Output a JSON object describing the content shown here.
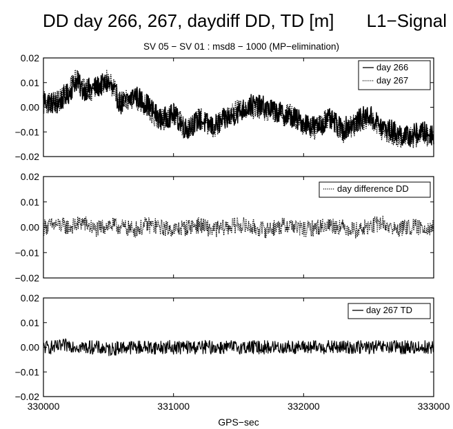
{
  "title_left": "DD day 266, 267, daydiff DD, TD [m]",
  "title_right": "L1−Signal",
  "subtitle": "SV 05 − SV 01 : msd8 − 1000   (MP−elimination)",
  "xlabel": "GPS−sec",
  "x_tick_labels": [
    "330000",
    "331000",
    "332000",
    "333000"
  ],
  "y_tick_labels": [
    "0.02",
    "0.01",
    "0.00",
    "−0.01",
    "−0.02"
  ],
  "colors": {
    "series": "#000000",
    "background": "#ffffff",
    "frame": "#000000"
  },
  "chart_data": [
    {
      "type": "line",
      "title": "",
      "xlabel": "",
      "ylabel": "",
      "xlim": [
        330000,
        333000
      ],
      "ylim": [
        -0.02,
        0.02
      ],
      "legend_position": "top-right",
      "series": [
        {
          "name": "day 266",
          "style": "solid",
          "x": [
            330000,
            330100,
            330200,
            330250,
            330300,
            330400,
            330500,
            330600,
            330700,
            330800,
            330900,
            331000,
            331100,
            331200,
            331300,
            331400,
            331500,
            331600,
            331700,
            331800,
            331900,
            332000,
            332100,
            332200,
            332300,
            332400,
            332500,
            332600,
            332700,
            332800,
            332900,
            333000
          ],
          "values": [
            0.003,
            0.001,
            0.006,
            0.011,
            0.007,
            0.008,
            0.01,
            0.001,
            0.005,
            0.001,
            -0.005,
            -0.003,
            -0.009,
            -0.005,
            -0.008,
            -0.005,
            -0.002,
            0.001,
            0.0,
            -0.002,
            -0.004,
            -0.006,
            -0.008,
            -0.005,
            -0.009,
            -0.006,
            -0.003,
            -0.008,
            -0.01,
            -0.012,
            -0.01,
            -0.011
          ]
        },
        {
          "name": "day 267",
          "style": "dotted",
          "x": [
            330000,
            330100,
            330200,
            330250,
            330300,
            330400,
            330500,
            330600,
            330700,
            330800,
            330900,
            331000,
            331100,
            331200,
            331300,
            331400,
            331500,
            331600,
            331700,
            331800,
            331900,
            332000,
            332100,
            332200,
            332300,
            332400,
            332500,
            332600,
            332700,
            332800,
            332900,
            333000
          ],
          "values": [
            0.002,
            0.002,
            0.007,
            0.012,
            0.008,
            0.007,
            0.011,
            0.002,
            0.004,
            0.0,
            -0.006,
            -0.002,
            -0.01,
            -0.004,
            -0.009,
            -0.004,
            -0.001,
            0.0,
            -0.001,
            -0.003,
            -0.003,
            -0.007,
            -0.009,
            -0.004,
            -0.01,
            -0.007,
            -0.004,
            -0.009,
            -0.011,
            -0.013,
            -0.011,
            -0.012
          ]
        }
      ]
    },
    {
      "type": "line",
      "title": "",
      "xlabel": "",
      "ylabel": "",
      "xlim": [
        330000,
        333000
      ],
      "ylim": [
        -0.02,
        0.02
      ],
      "legend_position": "top-right",
      "series": [
        {
          "name": "day difference DD",
          "style": "dotted",
          "x": [
            330000,
            330100,
            330200,
            330300,
            330400,
            330500,
            330600,
            330700,
            330800,
            330900,
            331000,
            331100,
            331200,
            331300,
            331400,
            331500,
            331600,
            331700,
            331800,
            331900,
            332000,
            332100,
            332200,
            332300,
            332400,
            332500,
            332600,
            332700,
            332800,
            332900,
            333000
          ],
          "values": [
            0.0,
            0.001,
            0.0,
            0.002,
            -0.001,
            0.001,
            0.0,
            -0.001,
            0.001,
            0.0,
            -0.001,
            0.0,
            0.001,
            -0.001,
            0.0,
            0.001,
            0.0,
            -0.001,
            0.0,
            0.001,
            -0.001,
            0.0,
            0.001,
            0.0,
            -0.001,
            0.0,
            0.002,
            -0.001,
            0.0,
            0.0,
            0.0
          ]
        }
      ]
    },
    {
      "type": "line",
      "title": "",
      "xlabel": "GPS−sec",
      "ylabel": "",
      "xlim": [
        330000,
        333000
      ],
      "ylim": [
        -0.02,
        0.02
      ],
      "legend_position": "top-right",
      "series": [
        {
          "name": "day 267 TD",
          "style": "solid",
          "x": [
            330000,
            330100,
            330200,
            330300,
            330400,
            330500,
            330600,
            330700,
            330800,
            330900,
            331000,
            331100,
            331200,
            331300,
            331400,
            331500,
            331600,
            331700,
            331800,
            331900,
            332000,
            332100,
            332200,
            332300,
            332400,
            332500,
            332600,
            332700,
            332800,
            332900,
            333000
          ],
          "values": [
            0.0,
            0.0,
            0.001,
            0.0,
            0.0,
            -0.001,
            0.0,
            0.0,
            0.0,
            0.0,
            0.0,
            0.0,
            0.0,
            0.0,
            0.0,
            0.0,
            0.0,
            0.0,
            0.0,
            0.0,
            0.0,
            0.0,
            0.0,
            0.0,
            0.0,
            0.0,
            0.0,
            0.0,
            0.0,
            0.0,
            0.0
          ]
        }
      ]
    }
  ]
}
